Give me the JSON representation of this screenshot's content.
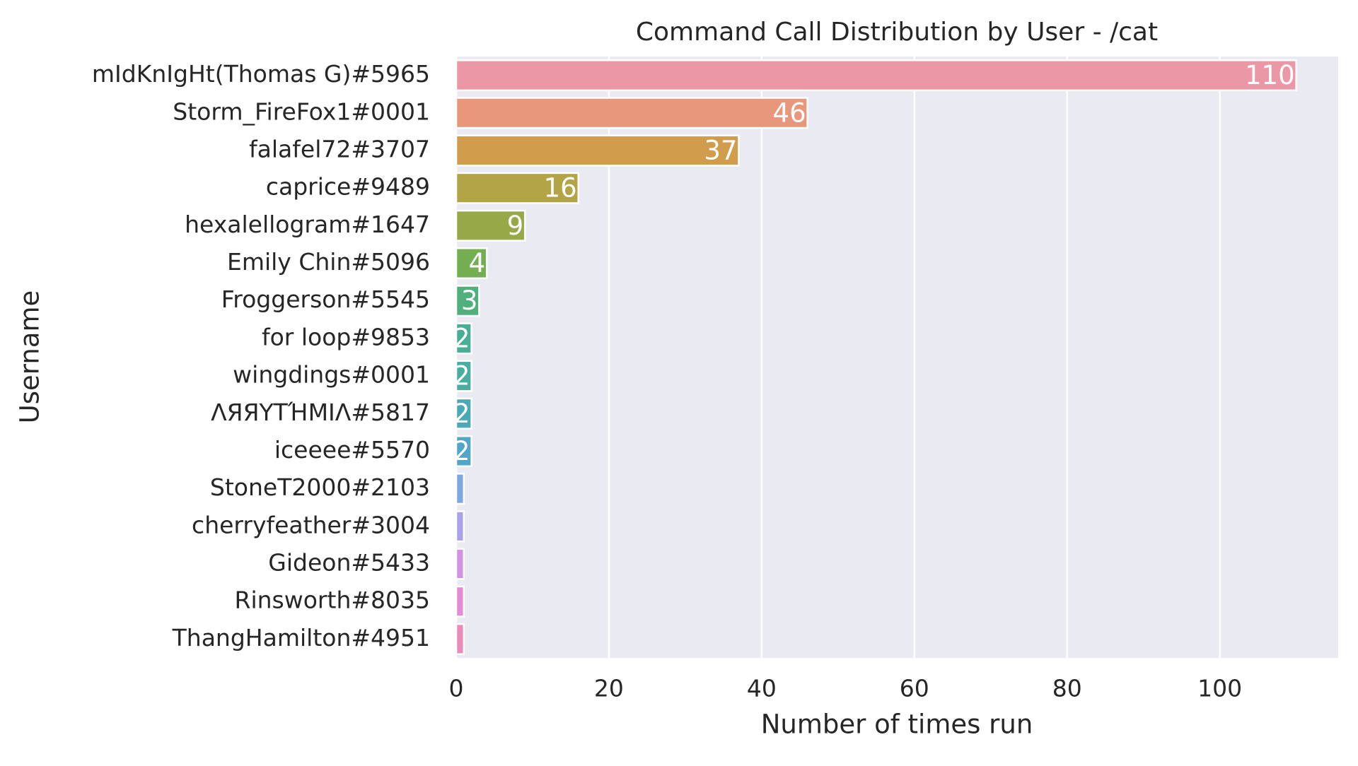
{
  "chart_data": {
    "type": "bar",
    "orientation": "horizontal",
    "title": "Command Call Distribution by User - /cat",
    "x_label": "Number of times run",
    "y_label": "Username",
    "categories": [
      "mIdKnIgHt(Thomas G)#5965",
      "Storm_FireFox1#0001",
      "falafel72#3707",
      "caprice#9489",
      "hexalellogram#1647",
      "Emily Chin#5096",
      "Froggerson#5545",
      "for loop#9853",
      "wingdings#0001",
      "ΛЯЯΥΤΉΜΙΛ#5817",
      "iceeee#5570",
      "StoneT2000#2103",
      "cherryfeather#3004",
      "Gideon#5433",
      "Rinsworth#8035",
      "ThangHamilton#4951"
    ],
    "values": [
      110,
      46,
      37,
      16,
      9,
      4,
      3,
      2,
      2,
      2,
      2,
      1,
      1,
      1,
      1,
      1
    ],
    "value_labels": [
      "110",
      "46",
      "37",
      "16",
      "9",
      "4",
      "3",
      "2",
      "2",
      "2",
      "2",
      null,
      null,
      null,
      null,
      null
    ],
    "colors": [
      "#ec97a5",
      "#e8977a",
      "#d29c4d",
      "#b3a447",
      "#97a849",
      "#73ae52",
      "#4fb07c",
      "#48ae95",
      "#4aad9f",
      "#4ba9b5",
      "#52a6c9",
      "#7ca9e0",
      "#aaa2e8",
      "#d293e6",
      "#e58bd5",
      "#e88cbc"
    ],
    "xlim": [
      0,
      115.5
    ],
    "xticks": [
      0,
      20,
      40,
      60,
      80,
      100
    ],
    "grid": true
  }
}
